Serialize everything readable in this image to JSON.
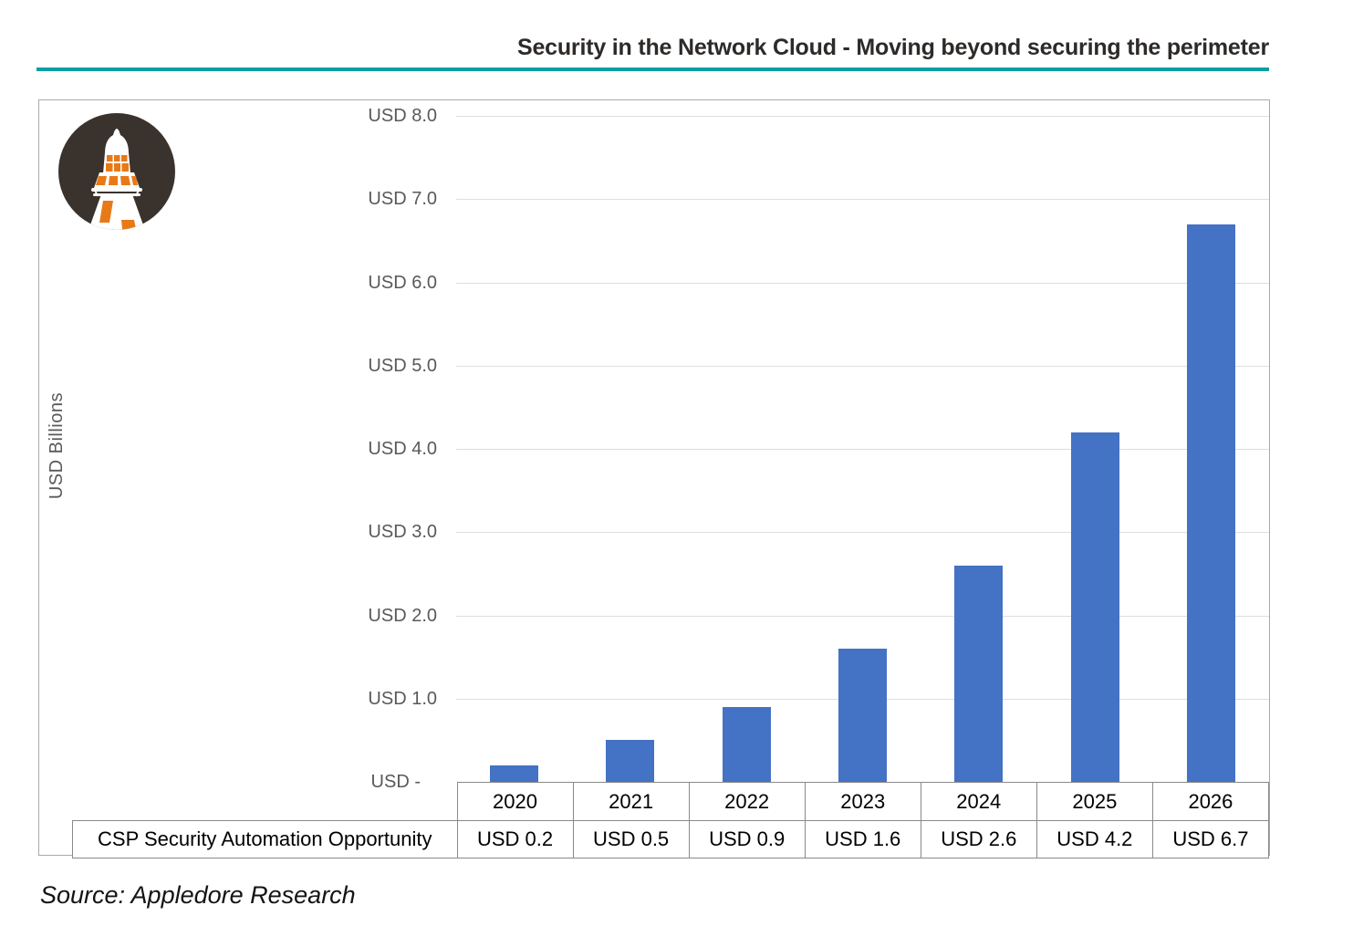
{
  "header": {
    "title": "Security in the Network Cloud - Moving beyond securing the perimeter"
  },
  "theme": {
    "accent_color": "#00a0a4",
    "bar_color": "#4472c4",
    "gridline_color": "#dedede",
    "axis_text_color": "#595959"
  },
  "logo": {
    "icon": "lighthouse-icon",
    "circle_color": "#3a322d",
    "tower_color": "#ffffff",
    "window_color": "#e87917"
  },
  "chart_data": {
    "type": "bar",
    "title": "Security in the Network Cloud - Moving beyond securing the perimeter",
    "xlabel": "",
    "ylabel": "USD Billions",
    "categories": [
      "2020",
      "2021",
      "2022",
      "2023",
      "2024",
      "2025",
      "2026"
    ],
    "series": [
      {
        "name": "CSP Security Automation Opportunity",
        "values": [
          0.2,
          0.5,
          0.9,
          1.6,
          2.6,
          4.2,
          6.7
        ],
        "value_labels": [
          "USD 0.2",
          "USD 0.5",
          "USD 0.9",
          "USD 1.6",
          "USD 2.6",
          "USD 4.2",
          "USD 6.7"
        ]
      }
    ],
    "ylim": [
      0,
      8
    ],
    "ytick_step": 1.0,
    "ytick_labels": [
      "USD -",
      "USD 1.0",
      "USD 2.0",
      "USD 3.0",
      "USD 4.0",
      "USD 5.0",
      "USD 6.0",
      "USD 7.0",
      "USD 8.0"
    ],
    "grid": true,
    "legend_position": "table-below-axis",
    "bar_color": "#4472c4",
    "gridline_color": "#dedede"
  },
  "source": {
    "text": "Source: Appledore Research"
  }
}
